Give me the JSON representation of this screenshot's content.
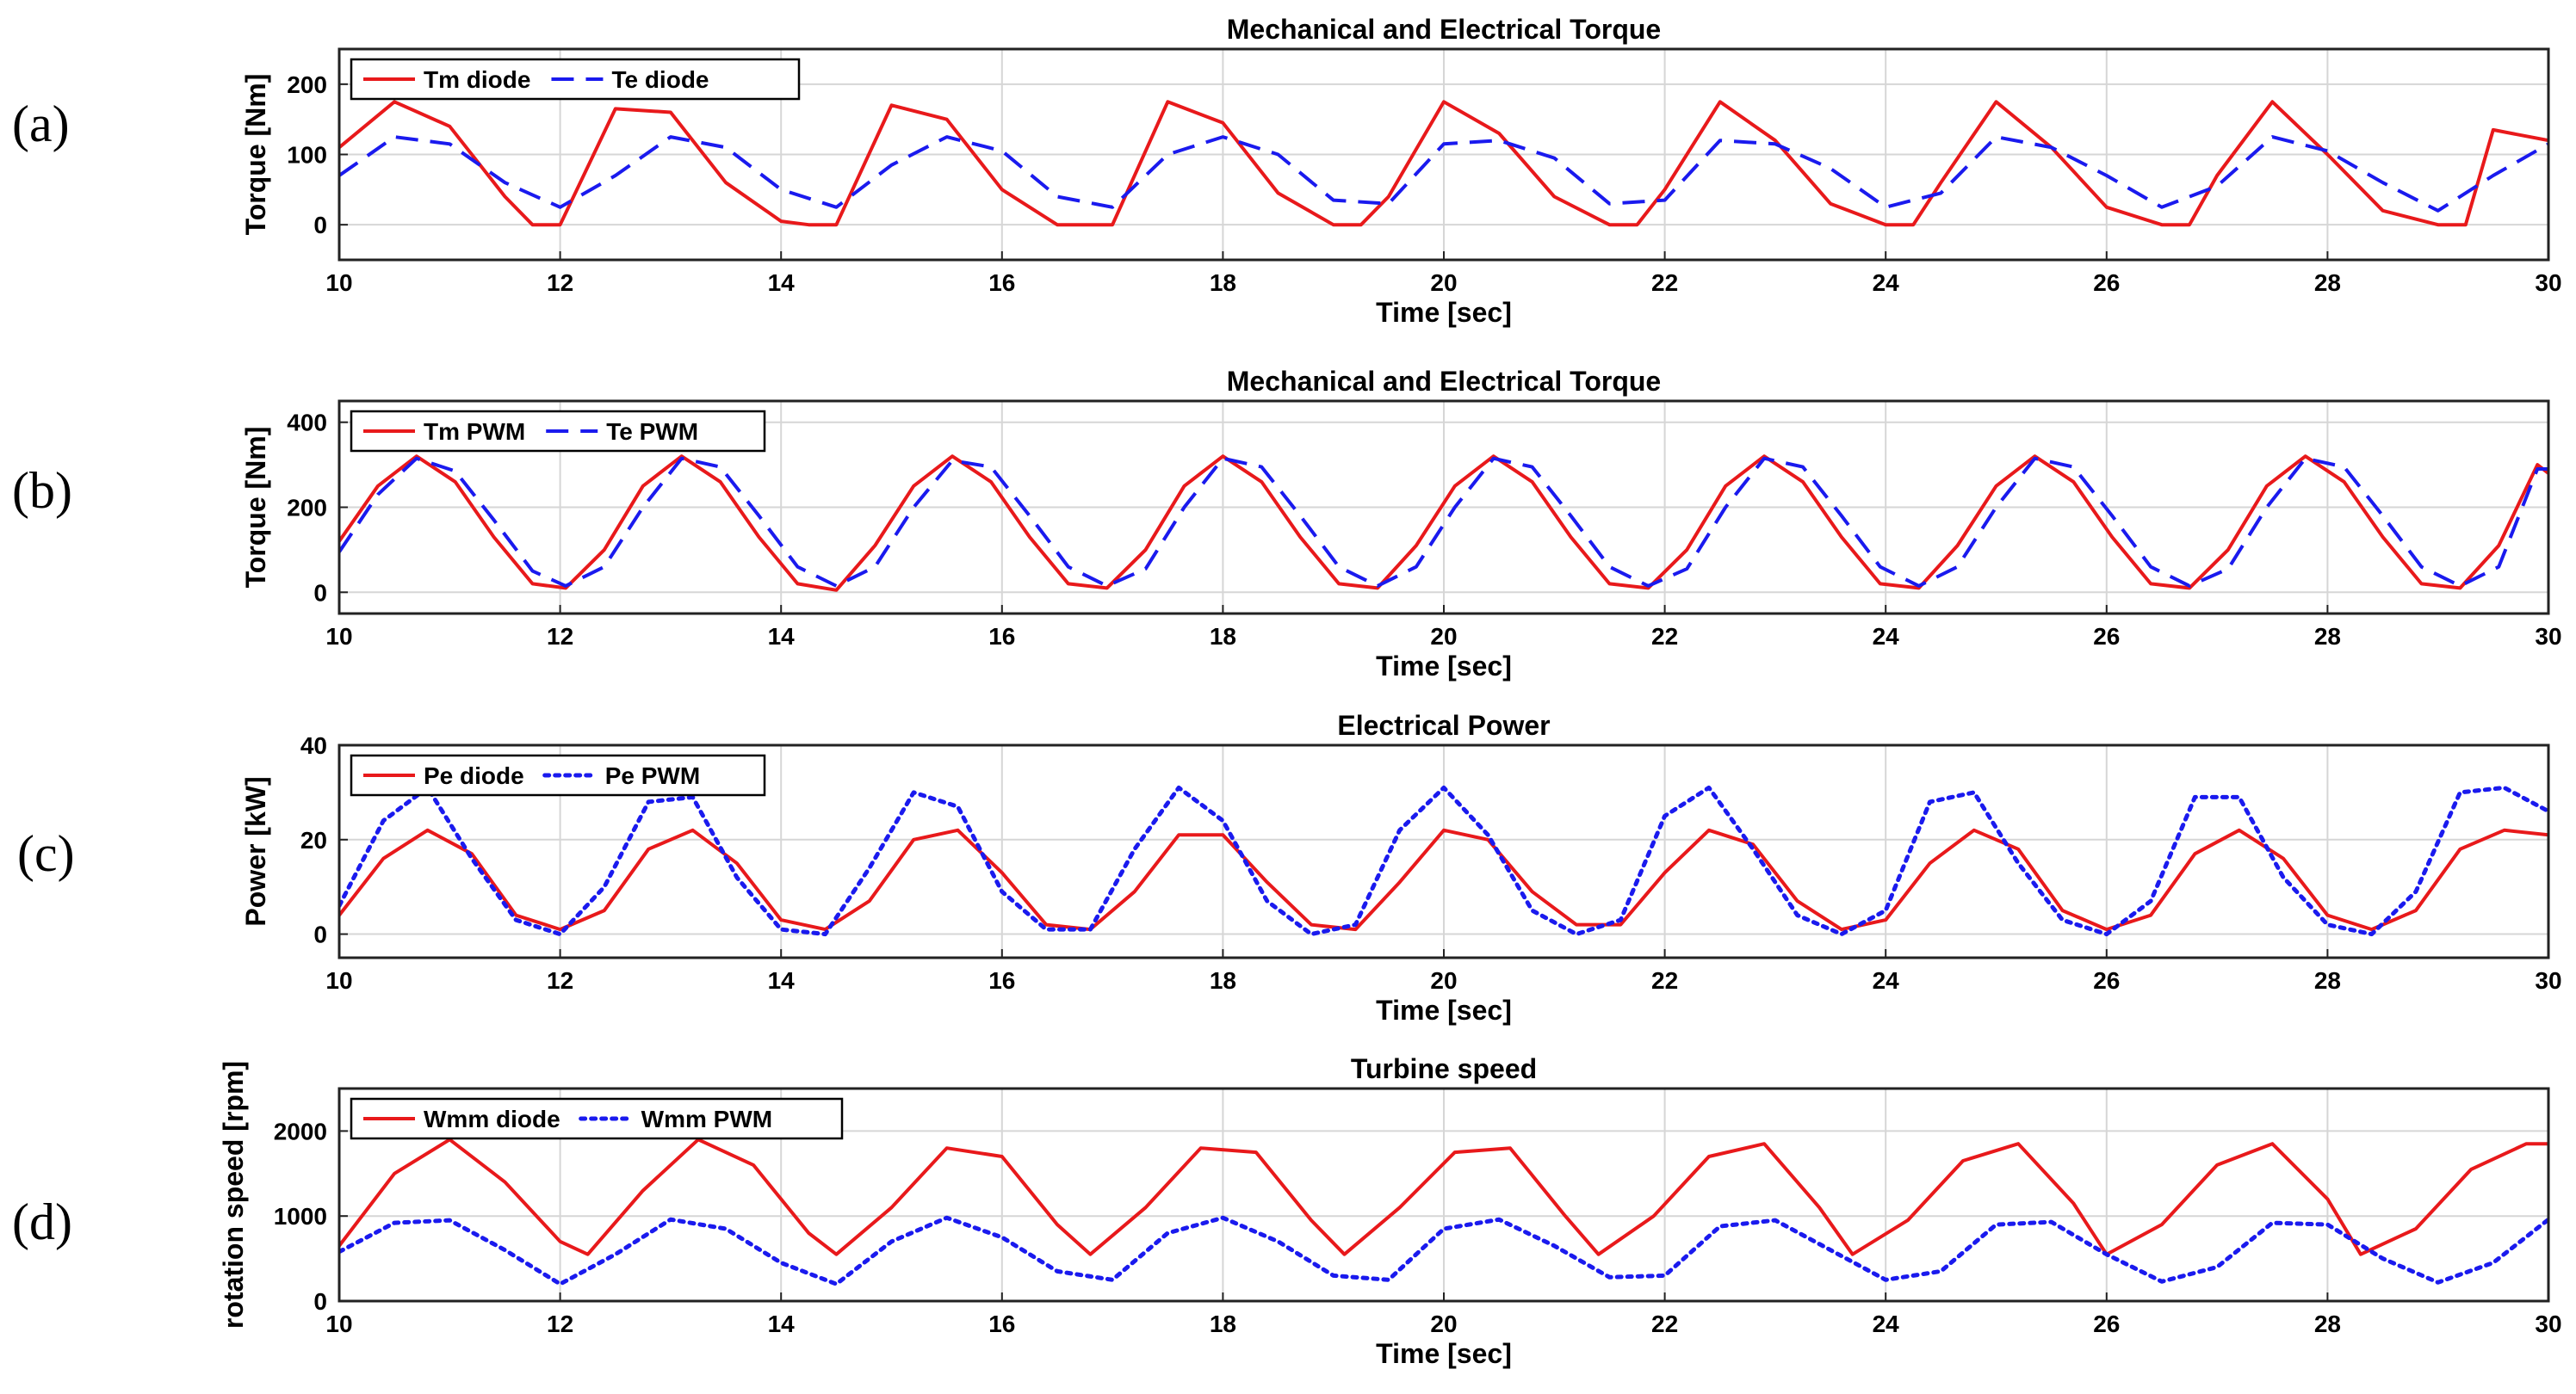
{
  "panel_labels": [
    "(a)",
    "(b)",
    "(c)",
    "(d)"
  ],
  "chart_data": [
    {
      "type": "line",
      "title": "Mechanical and Electrical Torque",
      "xlabel": "Time [sec]",
      "ylabel": "Torque [Nm]",
      "xlim": [
        10,
        30
      ],
      "ylim": [
        -50,
        250
      ],
      "xticks": [
        10,
        12,
        14,
        16,
        18,
        20,
        22,
        24,
        26,
        28,
        30
      ],
      "yticks": [
        0,
        100,
        200
      ],
      "xtick_labels": [
        "10",
        "12",
        "14",
        "16",
        "18",
        "20",
        "22",
        "24",
        "26",
        "28",
        "30"
      ],
      "ytick_labels": [
        "0",
        "100",
        "200"
      ],
      "grid": true,
      "legend_position": "top-left",
      "series": [
        {
          "name": "Tm diode",
          "color": "#e8191b",
          "style": "solid",
          "x": [
            10,
            10.5,
            11,
            11.5,
            11.75,
            12,
            12.5,
            13,
            13.5,
            14,
            14.25,
            14.5,
            15,
            15.5,
            16,
            16.5,
            16.75,
            17,
            17.5,
            18,
            18.5,
            19,
            19.25,
            19.5,
            20,
            20.5,
            21,
            21.5,
            21.75,
            22,
            22.5,
            23,
            23.5,
            24,
            24.25,
            24.5,
            25,
            25.5,
            26,
            26.5,
            26.75,
            27,
            27.5,
            28,
            28.5,
            29,
            29.25,
            29.5,
            30
          ],
          "values": [
            110,
            175,
            140,
            40,
            0,
            0,
            165,
            160,
            60,
            5,
            0,
            0,
            170,
            150,
            50,
            0,
            0,
            0,
            175,
            145,
            45,
            0,
            0,
            40,
            175,
            130,
            40,
            0,
            0,
            50,
            175,
            120,
            30,
            0,
            0,
            60,
            175,
            110,
            25,
            0,
            0,
            70,
            175,
            100,
            20,
            0,
            0,
            135,
            120
          ]
        },
        {
          "name": "Te diode",
          "color": "#1a1aee",
          "style": "dashed",
          "x": [
            10,
            10.5,
            11,
            11.5,
            12,
            12.5,
            13,
            13.5,
            14,
            14.5,
            15,
            15.5,
            16,
            16.5,
            17,
            17.5,
            18,
            18.5,
            19,
            19.5,
            20,
            20.5,
            21,
            21.5,
            22,
            22.5,
            23,
            23.5,
            24,
            24.5,
            25,
            25.5,
            26,
            26.5,
            27,
            27.5,
            28,
            28.5,
            29,
            29.5,
            30
          ],
          "values": [
            70,
            125,
            115,
            60,
            25,
            70,
            125,
            110,
            50,
            25,
            85,
            125,
            105,
            40,
            25,
            100,
            125,
            100,
            35,
            30,
            115,
            120,
            95,
            30,
            35,
            120,
            115,
            80,
            25,
            45,
            125,
            110,
            70,
            25,
            55,
            125,
            105,
            60,
            20,
            70,
            115
          ]
        }
      ]
    },
    {
      "type": "line",
      "title": "Mechanical and Electrical Torque",
      "xlabel": "Time [sec]",
      "ylabel": "Torque [Nm]",
      "xlim": [
        10,
        30
      ],
      "ylim": [
        -50,
        450
      ],
      "xticks": [
        10,
        12,
        14,
        16,
        18,
        20,
        22,
        24,
        26,
        28,
        30
      ],
      "yticks": [
        0,
        200,
        400
      ],
      "xtick_labels": [
        "10",
        "12",
        "14",
        "16",
        "18",
        "20",
        "22",
        "24",
        "26",
        "28",
        "30"
      ],
      "ytick_labels": [
        "0",
        "200",
        "400"
      ],
      "grid": true,
      "legend_position": "top-left",
      "series": [
        {
          "name": "Tm PWM",
          "color": "#e8191b",
          "style": "solid",
          "x": [
            10,
            10.35,
            10.7,
            11.05,
            11.4,
            11.75,
            12.05,
            12.4,
            12.75,
            13.1,
            13.45,
            13.8,
            14.15,
            14.5,
            14.85,
            15.2,
            15.55,
            15.9,
            16.25,
            16.6,
            16.95,
            17.3,
            17.65,
            18,
            18.35,
            18.7,
            19.05,
            19.4,
            19.75,
            20.1,
            20.45,
            20.8,
            21.15,
            21.5,
            21.85,
            22.2,
            22.55,
            22.9,
            23.25,
            23.6,
            23.95,
            24.3,
            24.65,
            25,
            25.35,
            25.7,
            26.05,
            26.4,
            26.75,
            27.1,
            27.45,
            27.8,
            28.15,
            28.5,
            28.85,
            29.2,
            29.55,
            29.9,
            30
          ],
          "values": [
            120,
            250,
            320,
            260,
            130,
            20,
            10,
            100,
            250,
            320,
            260,
            130,
            20,
            5,
            110,
            250,
            320,
            260,
            130,
            20,
            10,
            100,
            250,
            320,
            260,
            130,
            20,
            10,
            110,
            250,
            320,
            260,
            130,
            20,
            10,
            100,
            250,
            320,
            260,
            130,
            20,
            10,
            110,
            250,
            320,
            260,
            130,
            20,
            10,
            100,
            250,
            320,
            260,
            130,
            20,
            10,
            110,
            300,
            280
          ]
        },
        {
          "name": "Te PWM",
          "color": "#1a1aee",
          "style": "dashed",
          "x": [
            10,
            10.35,
            10.7,
            11.05,
            11.4,
            11.75,
            12.05,
            12.4,
            12.75,
            13.1,
            13.45,
            13.8,
            14.15,
            14.5,
            14.85,
            15.2,
            15.55,
            15.9,
            16.25,
            16.6,
            16.95,
            17.3,
            17.65,
            18,
            18.35,
            18.7,
            19.05,
            19.4,
            19.75,
            20.1,
            20.45,
            20.8,
            21.15,
            21.5,
            21.85,
            22.2,
            22.55,
            22.9,
            23.25,
            23.6,
            23.95,
            24.3,
            24.65,
            25,
            25.35,
            25.7,
            26.05,
            26.4,
            26.75,
            27.1,
            27.45,
            27.8,
            28.15,
            28.5,
            28.85,
            29.2,
            29.55,
            29.9,
            30
          ],
          "values": [
            95,
            230,
            315,
            285,
            170,
            50,
            15,
            60,
            200,
            315,
            295,
            180,
            60,
            15,
            60,
            200,
            310,
            295,
            180,
            60,
            15,
            55,
            200,
            315,
            295,
            180,
            60,
            15,
            60,
            200,
            315,
            295,
            180,
            60,
            15,
            55,
            200,
            315,
            295,
            180,
            60,
            15,
            60,
            200,
            315,
            295,
            180,
            60,
            15,
            55,
            200,
            315,
            295,
            180,
            60,
            15,
            60,
            290,
            290
          ]
        }
      ]
    },
    {
      "type": "line",
      "title": "Electrical Power",
      "xlabel": "Time [sec]",
      "ylabel": "Power [kW]",
      "xlim": [
        10,
        30
      ],
      "ylim": [
        -5,
        40
      ],
      "xticks": [
        10,
        12,
        14,
        16,
        18,
        20,
        22,
        24,
        26,
        28,
        30
      ],
      "yticks": [
        0,
        20,
        40
      ],
      "xtick_labels": [
        "10",
        "12",
        "14",
        "16",
        "18",
        "20",
        "22",
        "24",
        "26",
        "28",
        "30"
      ],
      "ytick_labels": [
        "0",
        "20",
        "40"
      ],
      "grid": true,
      "legend_position": "top-left",
      "series": [
        {
          "name": "Pe diode",
          "color": "#e8191b",
          "style": "solid",
          "x": [
            10,
            10.4,
            10.8,
            11.2,
            11.6,
            12,
            12.4,
            12.8,
            13.2,
            13.6,
            14,
            14.4,
            14.8,
            15.2,
            15.6,
            16,
            16.4,
            16.8,
            17.2,
            17.6,
            18,
            18.4,
            18.8,
            19.2,
            19.6,
            20,
            20.4,
            20.8,
            21.2,
            21.6,
            22,
            22.4,
            22.8,
            23.2,
            23.6,
            24,
            24.4,
            24.8,
            25.2,
            25.6,
            26,
            26.4,
            26.8,
            27.2,
            27.6,
            28,
            28.4,
            28.8,
            29.2,
            29.6,
            30
          ],
          "values": [
            4,
            16,
            22,
            17,
            4,
            1,
            5,
            18,
            22,
            15,
            3,
            1,
            7,
            20,
            22,
            13,
            2,
            1,
            9,
            21,
            21,
            11,
            2,
            1,
            11,
            22,
            20,
            9,
            2,
            2,
            13,
            22,
            19,
            7,
            1,
            3,
            15,
            22,
            18,
            5,
            1,
            4,
            17,
            22,
            16,
            4,
            1,
            5,
            18,
            22,
            21
          ]
        },
        {
          "name": "Pe PWM",
          "color": "#1a1aee",
          "style": "dotted",
          "x": [
            10,
            10.4,
            10.8,
            11.2,
            11.6,
            12,
            12.4,
            12.8,
            13.2,
            13.6,
            14,
            14.4,
            14.8,
            15.2,
            15.6,
            16,
            16.4,
            16.8,
            17.2,
            17.6,
            18,
            18.4,
            18.8,
            19.2,
            19.6,
            20,
            20.4,
            20.8,
            21.2,
            21.6,
            22,
            22.4,
            22.8,
            23.2,
            23.6,
            24,
            24.4,
            24.8,
            25.2,
            25.6,
            26,
            26.4,
            26.8,
            27.2,
            27.6,
            28,
            28.4,
            28.8,
            29.2,
            29.6,
            30
          ],
          "values": [
            6,
            24,
            31,
            16,
            3,
            0,
            10,
            28,
            29,
            12,
            1,
            0,
            14,
            30,
            27,
            9,
            1,
            1,
            18,
            31,
            24,
            7,
            0,
            2,
            22,
            31,
            21,
            5,
            0,
            3,
            25,
            31,
            18,
            4,
            0,
            5,
            28,
            30,
            15,
            3,
            0,
            7,
            29,
            29,
            12,
            2,
            0,
            9,
            30,
            31,
            26
          ]
        }
      ]
    },
    {
      "type": "line",
      "title": "Turbine speed",
      "xlabel": "Time [sec]",
      "ylabel": "rotation speed [rpm]",
      "xlim": [
        10,
        30
      ],
      "ylim": [
        0,
        2500
      ],
      "xticks": [
        10,
        12,
        14,
        16,
        18,
        20,
        22,
        24,
        26,
        28,
        30
      ],
      "yticks": [
        0,
        1000,
        2000
      ],
      "xtick_labels": [
        "10",
        "12",
        "14",
        "16",
        "18",
        "20",
        "22",
        "24",
        "26",
        "28",
        "30"
      ],
      "ytick_labels": [
        "0",
        "1000",
        "2000"
      ],
      "grid": true,
      "legend_position": "top-left",
      "series": [
        {
          "name": "Wmm diode",
          "color": "#e8191b",
          "style": "solid",
          "x": [
            10,
            10.5,
            11,
            11.5,
            12,
            12.25,
            12.75,
            13.25,
            13.75,
            14.25,
            14.5,
            15,
            15.5,
            16,
            16.5,
            16.8,
            17.3,
            17.8,
            18.3,
            18.8,
            19.1,
            19.6,
            20.1,
            20.6,
            21.1,
            21.4,
            21.9,
            22.4,
            22.9,
            23.4,
            23.7,
            24.2,
            24.7,
            25.2,
            25.7,
            26,
            26.5,
            27,
            27.5,
            28,
            28.3,
            28.8,
            29.3,
            29.8,
            30
          ],
          "values": [
            650,
            1500,
            1900,
            1400,
            700,
            550,
            1300,
            1900,
            1600,
            800,
            550,
            1100,
            1800,
            1700,
            900,
            550,
            1100,
            1800,
            1750,
            950,
            550,
            1100,
            1750,
            1800,
            1000,
            550,
            1000,
            1700,
            1850,
            1100,
            550,
            950,
            1650,
            1850,
            1150,
            550,
            900,
            1600,
            1850,
            1200,
            550,
            850,
            1550,
            1850,
            1850
          ]
        },
        {
          "name": "Wmm PWM",
          "color": "#1a1aee",
          "style": "dotted",
          "x": [
            10,
            10.5,
            11,
            11.5,
            12,
            12.5,
            13,
            13.5,
            14,
            14.5,
            15,
            15.5,
            16,
            16.5,
            17,
            17.5,
            18,
            18.5,
            19,
            19.5,
            20,
            20.5,
            21,
            21.5,
            22,
            22.5,
            23,
            23.5,
            24,
            24.5,
            25,
            25.5,
            26,
            26.5,
            27,
            27.5,
            28,
            28.5,
            29,
            29.5,
            30
          ],
          "values": [
            580,
            920,
            950,
            600,
            200,
            550,
            960,
            850,
            450,
            200,
            700,
            980,
            750,
            350,
            250,
            800,
            980,
            700,
            300,
            250,
            850,
            960,
            650,
            280,
            300,
            880,
            950,
            600,
            250,
            350,
            900,
            930,
            550,
            230,
            400,
            920,
            900,
            500,
            220,
            450,
            960
          ]
        }
      ]
    }
  ]
}
